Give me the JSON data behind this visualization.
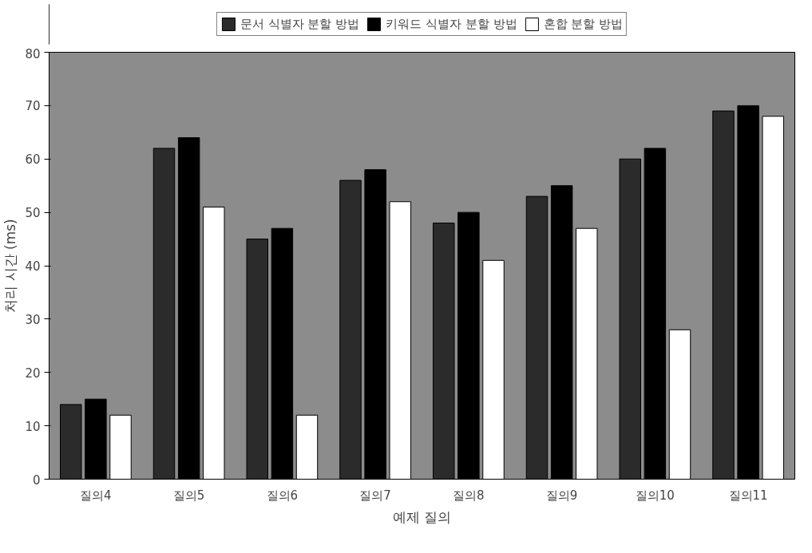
{
  "chart_data": {
    "type": "bar",
    "xlabel": "예제 질의",
    "ylabel": "처리 시간 (ms)",
    "categories": [
      "질의4",
      "질의5",
      "질의6",
      "질의7",
      "질의8",
      "질의9",
      "질의10",
      "질의11"
    ],
    "series": [
      {
        "name": "문서 식별자 분할 방법",
        "color": "#2b2b2b",
        "values": [
          14,
          62,
          45,
          56,
          48,
          53,
          60,
          69
        ]
      },
      {
        "name": "키워드 식별자 분할 방법",
        "color": "#000000",
        "values": [
          15,
          64,
          47,
          58,
          50,
          55,
          62,
          70
        ]
      },
      {
        "name": "혼합 분할 방법",
        "color": "#ffffff",
        "values": [
          12,
          51,
          12,
          52,
          41,
          47,
          28,
          68
        ]
      }
    ],
    "ylim": [
      0,
      80
    ],
    "yticks": [
      0,
      10,
      20,
      30,
      40,
      50,
      60,
      70,
      80
    ],
    "grid": false,
    "legend": "top"
  }
}
